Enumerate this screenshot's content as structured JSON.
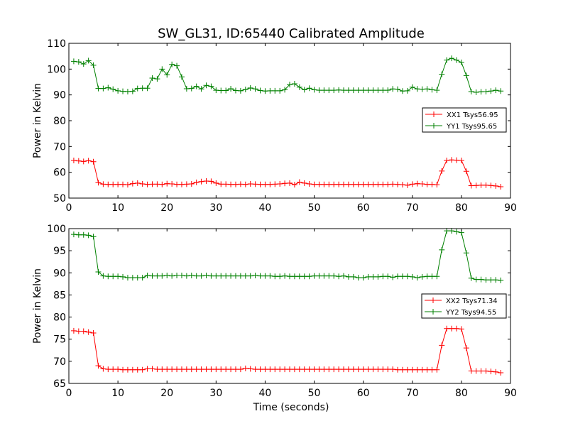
{
  "figure": {
    "title": "SW_GL31, ID:65440 Calibrated Amplitude",
    "xlabel": "Time (seconds)"
  },
  "chart_data": [
    {
      "type": "line",
      "title": "SW_GL31, ID:65440 Calibrated Amplitude",
      "xlabel": "",
      "ylabel": "Power in Kelvin",
      "xlim": [
        0,
        90
      ],
      "ylim": [
        50,
        110
      ],
      "xticks": [
        0,
        10,
        20,
        30,
        40,
        50,
        60,
        70,
        80,
        90
      ],
      "yticks": [
        50,
        60,
        70,
        80,
        90,
        100,
        110
      ],
      "grid": false,
      "legend_position": "center-right",
      "marker": "+",
      "x": [
        1,
        2,
        3,
        4,
        5,
        6,
        7,
        8,
        9,
        10,
        11,
        12,
        13,
        14,
        15,
        16,
        17,
        18,
        19,
        20,
        21,
        22,
        23,
        24,
        25,
        26,
        27,
        28,
        29,
        30,
        31,
        32,
        33,
        34,
        35,
        36,
        37,
        38,
        39,
        40,
        41,
        42,
        43,
        44,
        45,
        46,
        47,
        48,
        49,
        50,
        51,
        52,
        53,
        54,
        55,
        56,
        57,
        58,
        59,
        60,
        61,
        62,
        63,
        64,
        65,
        66,
        67,
        68,
        69,
        70,
        71,
        72,
        73,
        74,
        75,
        76,
        77,
        78,
        79,
        80,
        81,
        82,
        83,
        84,
        85,
        86,
        87,
        88
      ],
      "series": [
        {
          "name": "XX1 Tsys56.95",
          "color": "#ff0000",
          "values": [
            64.6,
            64.4,
            64.2,
            64.5,
            64.1,
            56.0,
            55.4,
            55.3,
            55.3,
            55.3,
            55.3,
            55.2,
            55.6,
            55.8,
            55.5,
            55.3,
            55.4,
            55.4,
            55.3,
            55.6,
            55.5,
            55.3,
            55.3,
            55.4,
            55.5,
            56.1,
            56.4,
            56.6,
            56.5,
            55.8,
            55.4,
            55.4,
            55.3,
            55.3,
            55.4,
            55.3,
            55.5,
            55.4,
            55.3,
            55.3,
            55.3,
            55.4,
            55.5,
            55.7,
            55.8,
            55.2,
            56.2,
            55.8,
            55.5,
            55.3,
            55.3,
            55.3,
            55.3,
            55.3,
            55.3,
            55.3,
            55.3,
            55.3,
            55.3,
            55.3,
            55.3,
            55.3,
            55.3,
            55.3,
            55.3,
            55.4,
            55.3,
            55.2,
            55.0,
            55.4,
            55.6,
            55.5,
            55.3,
            55.3,
            55.2,
            60.5,
            64.6,
            64.8,
            64.7,
            64.6,
            60.4,
            54.8,
            54.9,
            55.0,
            55.0,
            54.9,
            54.7,
            54.4
          ]
        },
        {
          "name": "YY1 Tsys95.65",
          "color": "#008000",
          "values": [
            103.0,
            102.8,
            102.0,
            103.3,
            101.5,
            92.5,
            92.5,
            92.8,
            92.2,
            91.6,
            91.4,
            91.3,
            91.4,
            92.5,
            92.6,
            92.6,
            96.5,
            96.2,
            100.0,
            97.8,
            101.8,
            101.3,
            97.0,
            92.4,
            92.5,
            93.3,
            92.3,
            93.7,
            93.3,
            91.8,
            91.7,
            91.7,
            92.4,
            91.7,
            91.6,
            92.1,
            92.7,
            92.3,
            91.7,
            91.5,
            91.6,
            91.6,
            91.6,
            92.0,
            94.0,
            94.3,
            93.0,
            92.0,
            92.6,
            92.0,
            91.8,
            91.8,
            91.8,
            91.8,
            91.9,
            91.8,
            91.8,
            91.8,
            91.8,
            91.8,
            91.8,
            91.8,
            91.8,
            91.8,
            91.8,
            92.3,
            92.2,
            91.5,
            91.6,
            93.0,
            92.3,
            92.2,
            92.3,
            92.0,
            91.8,
            98.0,
            103.5,
            104.2,
            103.5,
            102.6,
            97.5,
            91.3,
            91.0,
            91.2,
            91.3,
            91.5,
            91.8,
            91.5
          ]
        }
      ]
    },
    {
      "type": "line",
      "title": "",
      "xlabel": "Time (seconds)",
      "ylabel": "Power in Kelvin",
      "xlim": [
        0,
        90
      ],
      "ylim": [
        65,
        100
      ],
      "xticks": [
        0,
        10,
        20,
        30,
        40,
        50,
        60,
        70,
        80,
        90
      ],
      "yticks": [
        65,
        70,
        75,
        80,
        85,
        90,
        95,
        100
      ],
      "grid": false,
      "legend_position": "center-right",
      "marker": "+",
      "x": [
        1,
        2,
        3,
        4,
        5,
        6,
        7,
        8,
        9,
        10,
        11,
        12,
        13,
        14,
        15,
        16,
        17,
        18,
        19,
        20,
        21,
        22,
        23,
        24,
        25,
        26,
        27,
        28,
        29,
        30,
        31,
        32,
        33,
        34,
        35,
        36,
        37,
        38,
        39,
        40,
        41,
        42,
        43,
        44,
        45,
        46,
        47,
        48,
        49,
        50,
        51,
        52,
        53,
        54,
        55,
        56,
        57,
        58,
        59,
        60,
        61,
        62,
        63,
        64,
        65,
        66,
        67,
        68,
        69,
        70,
        71,
        72,
        73,
        74,
        75,
        76,
        77,
        78,
        79,
        80,
        81,
        82,
        83,
        84,
        85,
        86,
        87,
        88
      ],
      "series": [
        {
          "name": "XX2 Tsys71.34",
          "color": "#ff0000",
          "values": [
            76.9,
            76.8,
            76.8,
            76.6,
            76.4,
            69.0,
            68.3,
            68.2,
            68.2,
            68.2,
            68.1,
            68.1,
            68.1,
            68.1,
            68.1,
            68.3,
            68.3,
            68.2,
            68.2,
            68.2,
            68.2,
            68.2,
            68.2,
            68.2,
            68.2,
            68.2,
            68.2,
            68.2,
            68.2,
            68.2,
            68.2,
            68.2,
            68.2,
            68.2,
            68.2,
            68.4,
            68.3,
            68.2,
            68.2,
            68.2,
            68.2,
            68.2,
            68.2,
            68.2,
            68.2,
            68.2,
            68.2,
            68.2,
            68.2,
            68.2,
            68.2,
            68.2,
            68.2,
            68.2,
            68.2,
            68.2,
            68.2,
            68.2,
            68.2,
            68.2,
            68.2,
            68.2,
            68.2,
            68.2,
            68.2,
            68.2,
            68.1,
            68.1,
            68.1,
            68.1,
            68.1,
            68.1,
            68.1,
            68.1,
            68.1,
            73.6,
            77.4,
            77.4,
            77.4,
            77.3,
            73.0,
            67.8,
            67.8,
            67.8,
            67.8,
            67.7,
            67.6,
            67.4
          ]
        },
        {
          "name": "YY2 Tsys94.55",
          "color": "#008000",
          "values": [
            98.7,
            98.6,
            98.6,
            98.5,
            98.2,
            90.2,
            89.3,
            89.2,
            89.2,
            89.2,
            89.1,
            88.9,
            88.9,
            88.9,
            88.9,
            89.4,
            89.3,
            89.3,
            89.3,
            89.4,
            89.3,
            89.4,
            89.4,
            89.3,
            89.4,
            89.3,
            89.3,
            89.4,
            89.3,
            89.3,
            89.3,
            89.3,
            89.3,
            89.3,
            89.3,
            89.3,
            89.3,
            89.4,
            89.3,
            89.3,
            89.3,
            89.2,
            89.2,
            89.3,
            89.2,
            89.2,
            89.2,
            89.2,
            89.2,
            89.3,
            89.3,
            89.3,
            89.3,
            89.3,
            89.2,
            89.3,
            89.1,
            89.1,
            88.9,
            88.9,
            89.1,
            89.1,
            89.1,
            89.2,
            89.2,
            89.0,
            89.2,
            89.2,
            89.2,
            89.1,
            88.9,
            89.1,
            89.2,
            89.2,
            89.2,
            95.2,
            99.5,
            99.5,
            99.3,
            99.1,
            94.5,
            88.8,
            88.5,
            88.5,
            88.4,
            88.4,
            88.4,
            88.3
          ]
        }
      ]
    }
  ]
}
